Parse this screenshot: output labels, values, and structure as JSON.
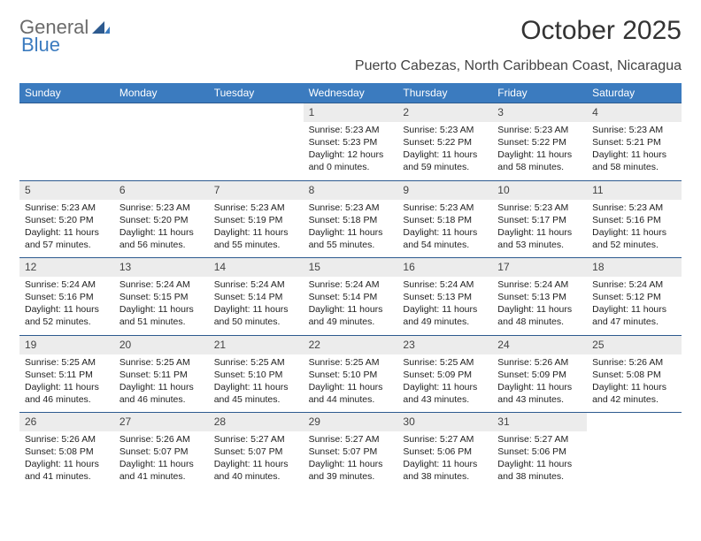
{
  "logo": {
    "word1": "General",
    "word2": "Blue"
  },
  "title": "October 2025",
  "subtitle": "Puerto Cabezas, North Caribbean Coast, Nicaragua",
  "colors": {
    "header_bg": "#3b7bbf",
    "header_text": "#ffffff",
    "daynum_bg": "#ececec",
    "week_border": "#2d5a8f"
  },
  "weekdays": [
    "Sunday",
    "Monday",
    "Tuesday",
    "Wednesday",
    "Thursday",
    "Friday",
    "Saturday"
  ],
  "weeks": [
    [
      {
        "empty": true
      },
      {
        "empty": true
      },
      {
        "empty": true
      },
      {
        "day": "1",
        "sunrise": "Sunrise: 5:23 AM",
        "sunset": "Sunset: 5:23 PM",
        "daylight1": "Daylight: 12 hours",
        "daylight2": "and 0 minutes."
      },
      {
        "day": "2",
        "sunrise": "Sunrise: 5:23 AM",
        "sunset": "Sunset: 5:22 PM",
        "daylight1": "Daylight: 11 hours",
        "daylight2": "and 59 minutes."
      },
      {
        "day": "3",
        "sunrise": "Sunrise: 5:23 AM",
        "sunset": "Sunset: 5:22 PM",
        "daylight1": "Daylight: 11 hours",
        "daylight2": "and 58 minutes."
      },
      {
        "day": "4",
        "sunrise": "Sunrise: 5:23 AM",
        "sunset": "Sunset: 5:21 PM",
        "daylight1": "Daylight: 11 hours",
        "daylight2": "and 58 minutes."
      }
    ],
    [
      {
        "day": "5",
        "sunrise": "Sunrise: 5:23 AM",
        "sunset": "Sunset: 5:20 PM",
        "daylight1": "Daylight: 11 hours",
        "daylight2": "and 57 minutes."
      },
      {
        "day": "6",
        "sunrise": "Sunrise: 5:23 AM",
        "sunset": "Sunset: 5:20 PM",
        "daylight1": "Daylight: 11 hours",
        "daylight2": "and 56 minutes."
      },
      {
        "day": "7",
        "sunrise": "Sunrise: 5:23 AM",
        "sunset": "Sunset: 5:19 PM",
        "daylight1": "Daylight: 11 hours",
        "daylight2": "and 55 minutes."
      },
      {
        "day": "8",
        "sunrise": "Sunrise: 5:23 AM",
        "sunset": "Sunset: 5:18 PM",
        "daylight1": "Daylight: 11 hours",
        "daylight2": "and 55 minutes."
      },
      {
        "day": "9",
        "sunrise": "Sunrise: 5:23 AM",
        "sunset": "Sunset: 5:18 PM",
        "daylight1": "Daylight: 11 hours",
        "daylight2": "and 54 minutes."
      },
      {
        "day": "10",
        "sunrise": "Sunrise: 5:23 AM",
        "sunset": "Sunset: 5:17 PM",
        "daylight1": "Daylight: 11 hours",
        "daylight2": "and 53 minutes."
      },
      {
        "day": "11",
        "sunrise": "Sunrise: 5:23 AM",
        "sunset": "Sunset: 5:16 PM",
        "daylight1": "Daylight: 11 hours",
        "daylight2": "and 52 minutes."
      }
    ],
    [
      {
        "day": "12",
        "sunrise": "Sunrise: 5:24 AM",
        "sunset": "Sunset: 5:16 PM",
        "daylight1": "Daylight: 11 hours",
        "daylight2": "and 52 minutes."
      },
      {
        "day": "13",
        "sunrise": "Sunrise: 5:24 AM",
        "sunset": "Sunset: 5:15 PM",
        "daylight1": "Daylight: 11 hours",
        "daylight2": "and 51 minutes."
      },
      {
        "day": "14",
        "sunrise": "Sunrise: 5:24 AM",
        "sunset": "Sunset: 5:14 PM",
        "daylight1": "Daylight: 11 hours",
        "daylight2": "and 50 minutes."
      },
      {
        "day": "15",
        "sunrise": "Sunrise: 5:24 AM",
        "sunset": "Sunset: 5:14 PM",
        "daylight1": "Daylight: 11 hours",
        "daylight2": "and 49 minutes."
      },
      {
        "day": "16",
        "sunrise": "Sunrise: 5:24 AM",
        "sunset": "Sunset: 5:13 PM",
        "daylight1": "Daylight: 11 hours",
        "daylight2": "and 49 minutes."
      },
      {
        "day": "17",
        "sunrise": "Sunrise: 5:24 AM",
        "sunset": "Sunset: 5:13 PM",
        "daylight1": "Daylight: 11 hours",
        "daylight2": "and 48 minutes."
      },
      {
        "day": "18",
        "sunrise": "Sunrise: 5:24 AM",
        "sunset": "Sunset: 5:12 PM",
        "daylight1": "Daylight: 11 hours",
        "daylight2": "and 47 minutes."
      }
    ],
    [
      {
        "day": "19",
        "sunrise": "Sunrise: 5:25 AM",
        "sunset": "Sunset: 5:11 PM",
        "daylight1": "Daylight: 11 hours",
        "daylight2": "and 46 minutes."
      },
      {
        "day": "20",
        "sunrise": "Sunrise: 5:25 AM",
        "sunset": "Sunset: 5:11 PM",
        "daylight1": "Daylight: 11 hours",
        "daylight2": "and 46 minutes."
      },
      {
        "day": "21",
        "sunrise": "Sunrise: 5:25 AM",
        "sunset": "Sunset: 5:10 PM",
        "daylight1": "Daylight: 11 hours",
        "daylight2": "and 45 minutes."
      },
      {
        "day": "22",
        "sunrise": "Sunrise: 5:25 AM",
        "sunset": "Sunset: 5:10 PM",
        "daylight1": "Daylight: 11 hours",
        "daylight2": "and 44 minutes."
      },
      {
        "day": "23",
        "sunrise": "Sunrise: 5:25 AM",
        "sunset": "Sunset: 5:09 PM",
        "daylight1": "Daylight: 11 hours",
        "daylight2": "and 43 minutes."
      },
      {
        "day": "24",
        "sunrise": "Sunrise: 5:26 AM",
        "sunset": "Sunset: 5:09 PM",
        "daylight1": "Daylight: 11 hours",
        "daylight2": "and 43 minutes."
      },
      {
        "day": "25",
        "sunrise": "Sunrise: 5:26 AM",
        "sunset": "Sunset: 5:08 PM",
        "daylight1": "Daylight: 11 hours",
        "daylight2": "and 42 minutes."
      }
    ],
    [
      {
        "day": "26",
        "sunrise": "Sunrise: 5:26 AM",
        "sunset": "Sunset: 5:08 PM",
        "daylight1": "Daylight: 11 hours",
        "daylight2": "and 41 minutes."
      },
      {
        "day": "27",
        "sunrise": "Sunrise: 5:26 AM",
        "sunset": "Sunset: 5:07 PM",
        "daylight1": "Daylight: 11 hours",
        "daylight2": "and 41 minutes."
      },
      {
        "day": "28",
        "sunrise": "Sunrise: 5:27 AM",
        "sunset": "Sunset: 5:07 PM",
        "daylight1": "Daylight: 11 hours",
        "daylight2": "and 40 minutes."
      },
      {
        "day": "29",
        "sunrise": "Sunrise: 5:27 AM",
        "sunset": "Sunset: 5:07 PM",
        "daylight1": "Daylight: 11 hours",
        "daylight2": "and 39 minutes."
      },
      {
        "day": "30",
        "sunrise": "Sunrise: 5:27 AM",
        "sunset": "Sunset: 5:06 PM",
        "daylight1": "Daylight: 11 hours",
        "daylight2": "and 38 minutes."
      },
      {
        "day": "31",
        "sunrise": "Sunrise: 5:27 AM",
        "sunset": "Sunset: 5:06 PM",
        "daylight1": "Daylight: 11 hours",
        "daylight2": "and 38 minutes."
      },
      {
        "empty": true
      }
    ]
  ]
}
